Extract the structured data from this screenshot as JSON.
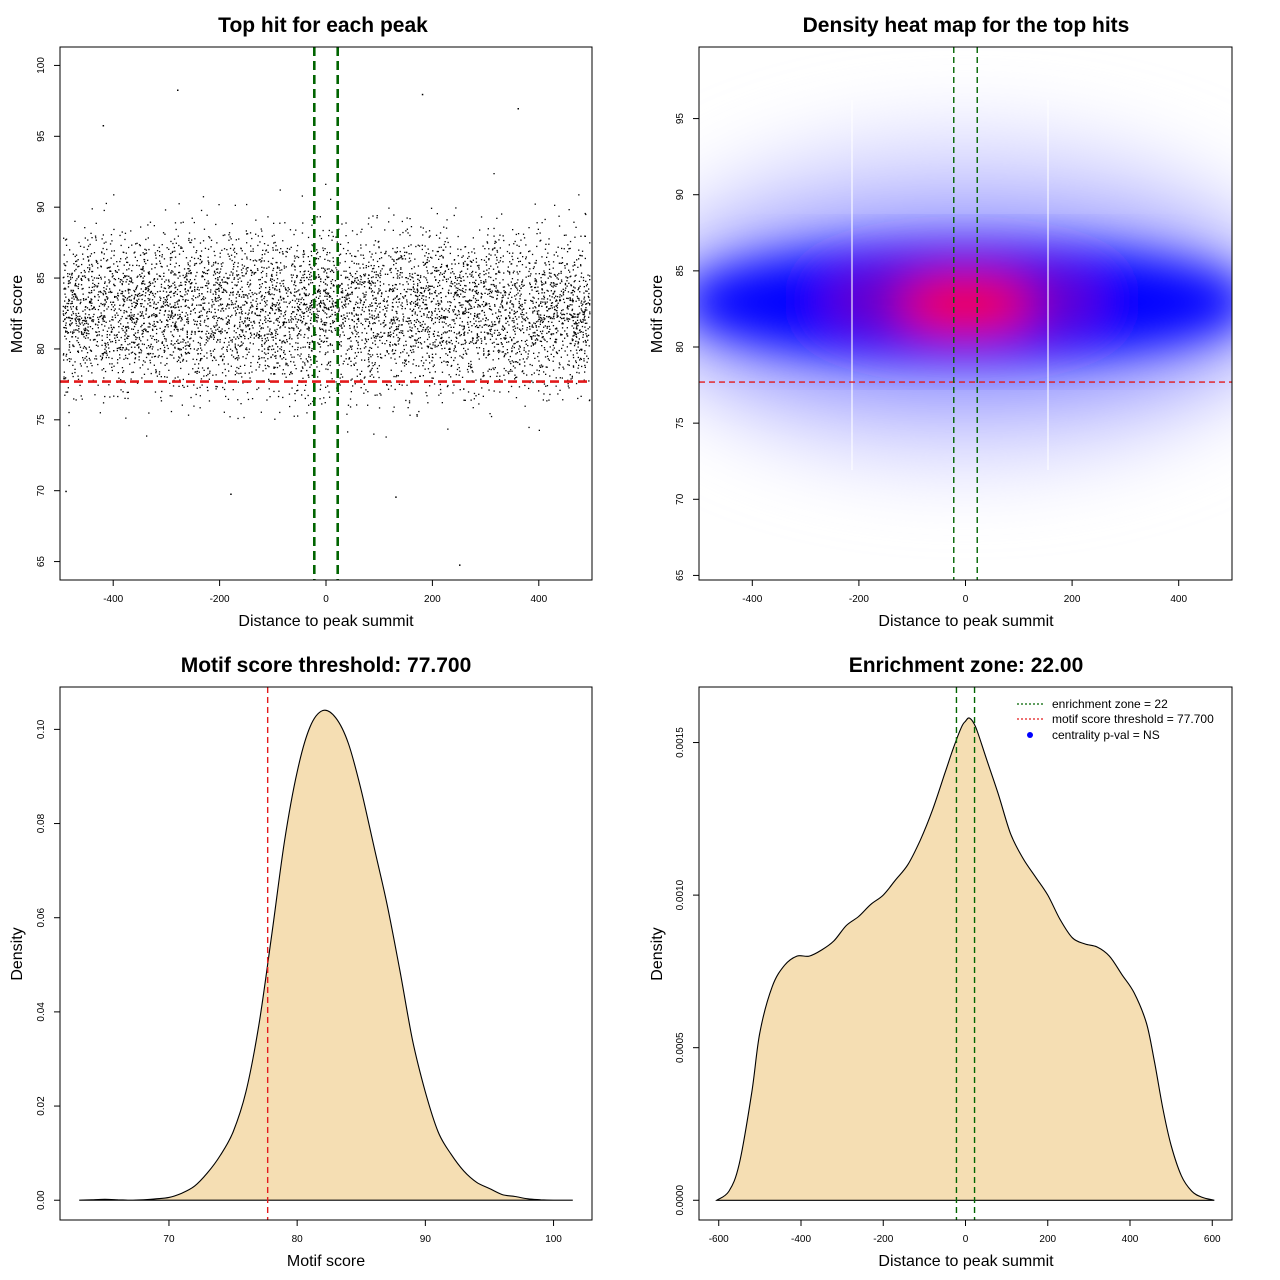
{
  "chart_data": [
    {
      "panel": "top-left",
      "type": "scatter",
      "title": "Top hit for each peak",
      "xlabel": "Distance to peak summit",
      "ylabel": "Motif score",
      "xlim": [
        -500,
        500
      ],
      "ylim": [
        63.7,
        101.3
      ],
      "xticks": [
        -400,
        -200,
        0,
        200,
        400
      ],
      "yticks": [
        65,
        70,
        75,
        80,
        85,
        90,
        95,
        100
      ],
      "point_summary": {
        "approx_count": 6000,
        "x_range": [
          -495,
          495
        ],
        "y_center": 82.8,
        "y_spread_sd": 3.9,
        "outliers": [
          [
            -280,
            98.3
          ],
          [
            -490,
            70.0
          ],
          [
            250,
            64.8
          ],
          [
            130,
            69.6
          ],
          [
            -180,
            69.8
          ],
          [
            180,
            98.0
          ],
          [
            360,
            97.0
          ],
          [
            -420,
            95.8
          ]
        ]
      },
      "hlines": [
        {
          "y": 77.7,
          "color": "#e31a1c",
          "style": "dashed"
        }
      ],
      "vlines": [
        {
          "x": -22,
          "color": "#006400",
          "style": "dashed"
        },
        {
          "x": 22,
          "color": "#006400",
          "style": "dashed"
        }
      ]
    },
    {
      "panel": "top-right",
      "type": "heatmap",
      "title": "Density heat map for the top hits",
      "xlabel": "Distance to peak summit",
      "ylabel": "Motif score",
      "xlim": [
        -500,
        500
      ],
      "ylim": [
        64.7,
        99.7
      ],
      "xticks": [
        -400,
        -200,
        0,
        200,
        400
      ],
      "yticks": [
        65,
        70,
        75,
        80,
        85,
        90,
        95
      ],
      "colors": {
        "low": "#ffffff",
        "mid": "#0000ff",
        "high": "#ff0000"
      },
      "density_peak": {
        "x": 0,
        "y": 82.7
      },
      "hlines": [
        {
          "y": 77.7,
          "color": "#e31a1c",
          "style": "dashed"
        }
      ],
      "vlines": [
        {
          "x": -22,
          "color": "#006400",
          "style": "dashed"
        },
        {
          "x": 22,
          "color": "#006400",
          "style": "dashed"
        }
      ]
    },
    {
      "panel": "bottom-left",
      "type": "area",
      "title": "Motif score threshold: 77.700",
      "xlabel": "Motif score",
      "ylabel": "Density",
      "xlim": [
        61.5,
        103.0
      ],
      "ylim": [
        -0.0042,
        0.109
      ],
      "xticks": [
        70,
        80,
        90,
        100
      ],
      "yticks": [
        0.0,
        0.02,
        0.04,
        0.06,
        0.08,
        0.1
      ],
      "ytick_labels": [
        "0.00",
        "0.02",
        "0.04",
        "0.06",
        "0.08",
        "0.10"
      ],
      "fill": "#f5deb3",
      "x": [
        63,
        64,
        65,
        66,
        67,
        68,
        69,
        70,
        71,
        72,
        73,
        74,
        75,
        76,
        77,
        78,
        79,
        80,
        81,
        82,
        83,
        84,
        85,
        86,
        87,
        88,
        89,
        90,
        91,
        92,
        93,
        94,
        95,
        96,
        97,
        98,
        99,
        100,
        101.5
      ],
      "y": [
        0.0,
        0.0001,
        0.0002,
        0.0001,
        0.0,
        0.0001,
        0.0003,
        0.0006,
        0.0015,
        0.003,
        0.0058,
        0.0095,
        0.0145,
        0.023,
        0.037,
        0.056,
        0.076,
        0.091,
        0.1005,
        0.104,
        0.1025,
        0.097,
        0.087,
        0.075,
        0.063,
        0.049,
        0.034,
        0.023,
        0.0145,
        0.0098,
        0.0062,
        0.0038,
        0.0025,
        0.0012,
        0.0008,
        0.0003,
        0.0001,
        0.0,
        0.0
      ],
      "vlines": [
        {
          "x": 77.7,
          "color": "#e31a1c",
          "style": "dashed"
        }
      ]
    },
    {
      "panel": "bottom-right",
      "type": "area",
      "title": "Enrichment zone: 22.00",
      "xlabel": "Distance to peak summit",
      "ylabel": "Density",
      "xlim": [
        -648,
        648
      ],
      "ylim": [
        -6.47e-05,
        0.001682
      ],
      "xticks": [
        -600,
        -400,
        -200,
        0,
        200,
        400,
        600
      ],
      "yticks": [
        0.0,
        0.0005,
        0.001,
        0.0015
      ],
      "ytick_labels": [
        "0.0000",
        "0.0005",
        "0.0010",
        "0.0015"
      ],
      "fill": "#f5deb3",
      "x": [
        -605,
        -575,
        -550,
        -520,
        -500,
        -470,
        -440,
        -410,
        -380,
        -350,
        -320,
        -290,
        -260,
        -230,
        -200,
        -170,
        -140,
        -110,
        -80,
        -50,
        -30,
        -10,
        0,
        10,
        25,
        50,
        80,
        110,
        140,
        170,
        200,
        230,
        260,
        290,
        320,
        350,
        380,
        410,
        440,
        460,
        480,
        500,
        525,
        550,
        575,
        605
      ],
      "y": [
        0.0,
        3e-05,
        0.00012,
        0.00035,
        0.00055,
        0.0007,
        0.00077,
        0.0008,
        0.0008,
        0.00082,
        0.00085,
        0.0009,
        0.00093,
        0.00097,
        0.001,
        0.00105,
        0.0011,
        0.00118,
        0.00128,
        0.0014,
        0.00148,
        0.00155,
        0.00157,
        0.00158,
        0.00155,
        0.00145,
        0.00133,
        0.0012,
        0.00112,
        0.00106,
        0.001,
        0.00092,
        0.00086,
        0.00084,
        0.00083,
        0.0008,
        0.00074,
        0.00068,
        0.00058,
        0.00045,
        0.0003,
        0.00018,
        8e-05,
        3e-05,
        1e-05,
        0.0
      ],
      "vlines": [
        {
          "x": -22,
          "color": "#006400",
          "style": "dashed"
        },
        {
          "x": 22,
          "color": "#006400",
          "style": "dashed"
        }
      ],
      "legend": {
        "position": "top-right",
        "entries": [
          {
            "label": "enrichment zone = 22",
            "color": "#006400",
            "kind": "dotted-line"
          },
          {
            "label": "motif score threshold = 77.700",
            "color": "#e31a1c",
            "kind": "dotted-line"
          },
          {
            "label": "centrality p-val = NS",
            "color": "#0000ff",
            "kind": "point"
          }
        ]
      }
    }
  ]
}
